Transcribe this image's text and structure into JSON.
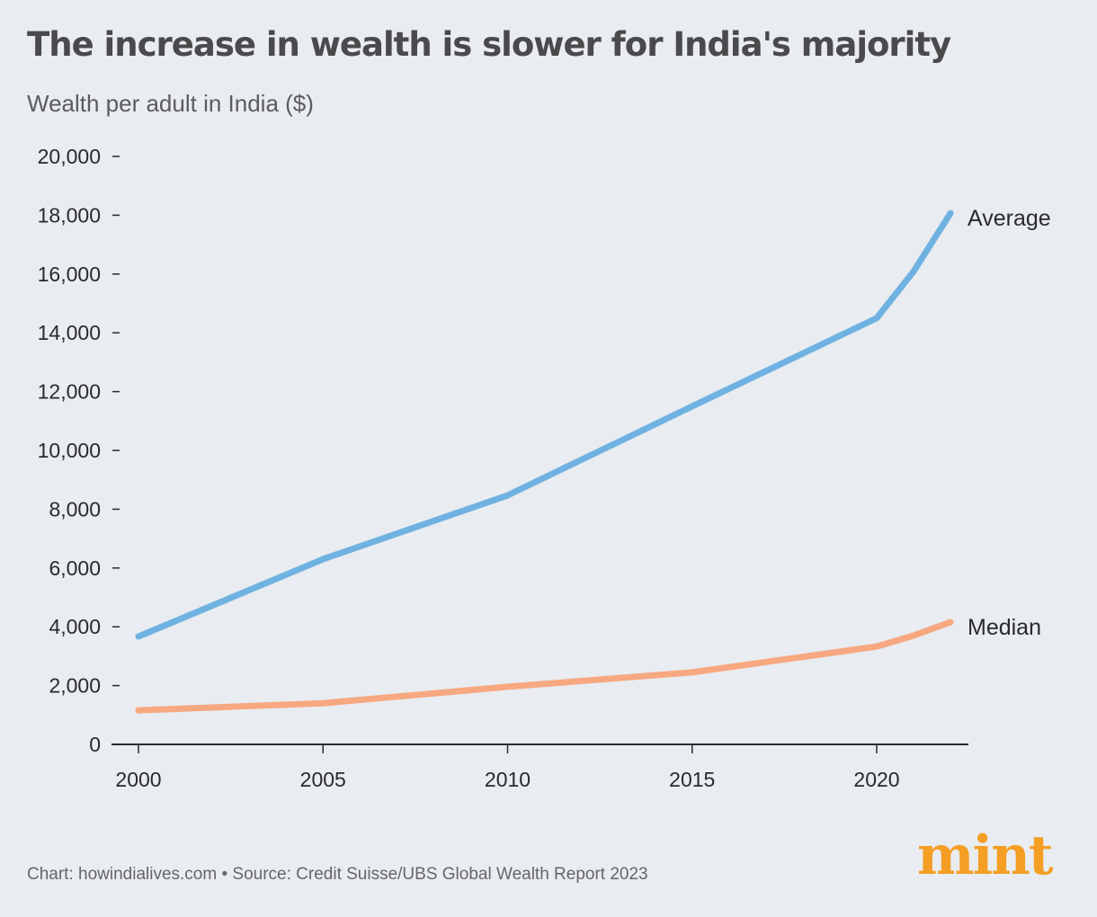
{
  "chart_data": {
    "type": "line",
    "title": "The increase in wealth is slower for India's majority",
    "subtitle": "Wealth per adult in India ($)",
    "xlabel": "",
    "ylabel": "",
    "x": [
      2000,
      2005,
      2010,
      2015,
      2020,
      2021,
      2022
    ],
    "xlim": [
      2000,
      2022.5
    ],
    "ylim": [
      0,
      20000
    ],
    "xticks": [
      "2000",
      "2005",
      "2010",
      "2015",
      "2020"
    ],
    "yticks": [
      "0",
      "2,000",
      "4,000",
      "6,000",
      "8,000",
      "10,000",
      "12,000",
      "14,000",
      "16,000",
      "18,000",
      "20,000"
    ],
    "grid": false,
    "legend": "direct labels at line ends",
    "series": [
      {
        "name": "Average",
        "color": "#6fb2e2",
        "values": [
          3670,
          6300,
          8470,
          11500,
          14500,
          16090,
          18070
        ]
      },
      {
        "name": "Median",
        "color": "#f7a880",
        "values": [
          1160,
          1400,
          1960,
          2450,
          3330,
          3700,
          4160
        ]
      }
    ]
  },
  "footer": "Chart: howindialives.com • Source: Credit Suisse/UBS Global Wealth Report 2023",
  "logo": {
    "text": "mint",
    "color": "#f59e24"
  }
}
